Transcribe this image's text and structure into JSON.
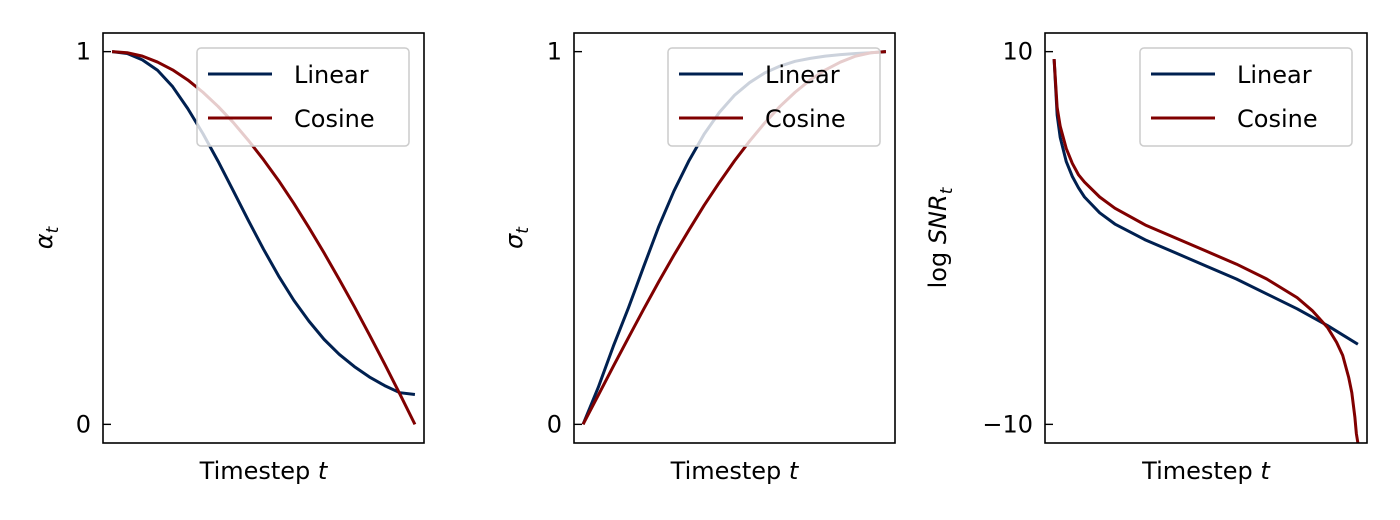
{
  "chart_data": [
    {
      "type": "line",
      "xlabel": "Timestep ",
      "xlabel_var": "t",
      "ylabel_var": "α",
      "ylabel_sub": "t",
      "ylim": [
        -0.05,
        1.05
      ],
      "yticks": [
        0,
        1
      ],
      "ytick_labels": [
        "0",
        "1"
      ],
      "xlim": [
        -0.03,
        1.03
      ],
      "legend": "top-right",
      "series": [
        {
          "name": "Linear",
          "color": "#002050",
          "x": [
            0,
            0.05,
            0.1,
            0.15,
            0.2,
            0.25,
            0.3,
            0.35,
            0.4,
            0.45,
            0.5,
            0.55,
            0.6,
            0.65,
            0.7,
            0.75,
            0.8,
            0.85,
            0.9,
            0.95,
            1
          ],
          "y": [
            1.0,
            0.995,
            0.978,
            0.95,
            0.906,
            0.847,
            0.78,
            0.706,
            0.627,
            0.547,
            0.47,
            0.398,
            0.333,
            0.277,
            0.228,
            0.188,
            0.155,
            0.127,
            0.104,
            0.085,
            0.08
          ]
        },
        {
          "name": "Cosine",
          "color": "#800000",
          "x": [
            0,
            0.05,
            0.1,
            0.15,
            0.2,
            0.25,
            0.3,
            0.35,
            0.4,
            0.45,
            0.5,
            0.55,
            0.6,
            0.65,
            0.7,
            0.75,
            0.8,
            0.85,
            0.9,
            0.95,
            1
          ],
          "y": [
            1.0,
            0.997,
            0.988,
            0.972,
            0.951,
            0.924,
            0.891,
            0.853,
            0.81,
            0.762,
            0.71,
            0.654,
            0.593,
            0.528,
            0.46,
            0.389,
            0.316,
            0.24,
            0.162,
            0.082,
            0.0
          ]
        }
      ]
    },
    {
      "type": "line",
      "xlabel": "Timestep ",
      "xlabel_var": "t",
      "ylabel_var": "σ",
      "ylabel_sub": "t",
      "ylim": [
        -0.05,
        1.05
      ],
      "yticks": [
        0,
        1
      ],
      "ytick_labels": [
        "0",
        "1"
      ],
      "xlim": [
        -0.03,
        1.03
      ],
      "legend": "top-right",
      "series": [
        {
          "name": "Linear",
          "color": "#002050",
          "x": [
            0,
            0.05,
            0.1,
            0.15,
            0.2,
            0.25,
            0.3,
            0.35,
            0.4,
            0.45,
            0.5,
            0.55,
            0.6,
            0.65,
            0.7,
            0.75,
            0.8,
            0.85,
            0.9,
            0.95,
            1
          ],
          "y": [
            0.0,
            0.099,
            0.21,
            0.313,
            0.423,
            0.531,
            0.626,
            0.708,
            0.779,
            0.837,
            0.883,
            0.917,
            0.943,
            0.961,
            0.974,
            0.982,
            0.988,
            0.992,
            0.995,
            0.997,
            1.0
          ]
        },
        {
          "name": "Cosine",
          "color": "#800000",
          "x": [
            0,
            0.05,
            0.1,
            0.15,
            0.2,
            0.25,
            0.3,
            0.35,
            0.4,
            0.45,
            0.5,
            0.55,
            0.6,
            0.65,
            0.7,
            0.75,
            0.8,
            0.85,
            0.9,
            0.95,
            1
          ],
          "y": [
            0.0,
            0.078,
            0.156,
            0.233,
            0.309,
            0.383,
            0.454,
            0.522,
            0.588,
            0.649,
            0.707,
            0.76,
            0.809,
            0.853,
            0.891,
            0.924,
            0.951,
            0.972,
            0.988,
            0.997,
            1.0
          ]
        }
      ]
    },
    {
      "type": "line",
      "xlabel": "Timestep ",
      "xlabel_var": "t",
      "ylabel_prefix": "log ",
      "ylabel_var": "SNR",
      "ylabel_sub": "t",
      "ylim": [
        -11,
        11
      ],
      "yticks": [
        -10,
        10
      ],
      "ytick_labels": [
        "−10",
        "10"
      ],
      "xlim": [
        -0.03,
        1.03
      ],
      "legend": "top-right",
      "series": [
        {
          "name": "Linear",
          "color": "#002050",
          "x": [
            0,
            0.01,
            0.02,
            0.04,
            0.06,
            0.08,
            0.1,
            0.15,
            0.2,
            0.3,
            0.4,
            0.5,
            0.6,
            0.7,
            0.8,
            0.9,
            0.95,
            1
          ],
          "y": [
            9.6,
            6.6,
            5.4,
            4.1,
            3.3,
            2.7,
            2.2,
            1.35,
            0.75,
            -0.1,
            -0.8,
            -1.5,
            -2.2,
            -3.0,
            -3.8,
            -4.7,
            -5.2,
            -5.7
          ]
        },
        {
          "name": "Cosine",
          "color": "#800000",
          "x": [
            0,
            0.01,
            0.02,
            0.04,
            0.06,
            0.08,
            0.1,
            0.15,
            0.2,
            0.3,
            0.4,
            0.5,
            0.6,
            0.7,
            0.8,
            0.85,
            0.9,
            0.93,
            0.95,
            0.97,
            0.98,
            0.99,
            0.995,
            1
          ],
          "y": [
            9.6,
            7.0,
            6.0,
            4.8,
            4.0,
            3.4,
            3.0,
            2.2,
            1.6,
            0.7,
            0.0,
            -0.7,
            -1.4,
            -2.2,
            -3.2,
            -3.9,
            -4.8,
            -5.6,
            -6.3,
            -7.5,
            -8.3,
            -9.6,
            -10.5,
            -11.0
          ]
        }
      ]
    }
  ]
}
